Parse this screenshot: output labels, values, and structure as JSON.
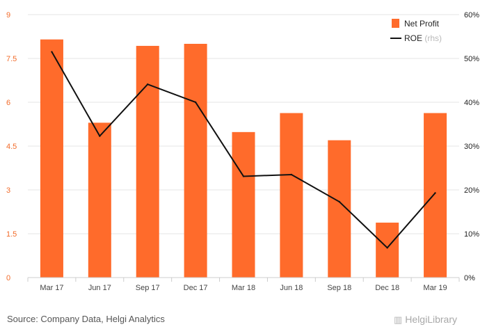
{
  "chart_data": {
    "type": "bar",
    "categories": [
      "Mar 17",
      "Jun 17",
      "Sep 17",
      "Dec 17",
      "Mar 18",
      "Jun 18",
      "Sep 18",
      "Dec 18",
      "Mar 19"
    ],
    "series": [
      {
        "name": "Net Profit",
        "type": "bar",
        "axis": "left",
        "color": "#ff6b2b",
        "values": [
          8.15,
          5.3,
          7.93,
          8.0,
          4.98,
          5.63,
          4.7,
          1.88,
          5.63
        ]
      },
      {
        "name": "ROE",
        "type": "line",
        "axis": "right",
        "color": "#111111",
        "values": [
          51.5,
          32.3,
          44.1,
          40.0,
          23.1,
          23.5,
          17.3,
          6.8,
          19.3
        ]
      }
    ],
    "legend_sub": "(rhs)",
    "y_left": {
      "ticks": [
        "0",
        "1.5",
        "3",
        "4.5",
        "6",
        "7.5",
        "9"
      ],
      "tick_values": [
        0,
        1.5,
        3,
        4.5,
        6,
        7.5,
        9
      ],
      "range": [
        0,
        9
      ]
    },
    "y_right": {
      "ticks": [
        "0%",
        "10%",
        "20%",
        "30%",
        "40%",
        "50%",
        "60%"
      ],
      "tick_values": [
        0,
        10,
        20,
        30,
        40,
        50,
        60
      ],
      "range": [
        0,
        60
      ]
    },
    "grid": true,
    "legend_position": "top-right"
  },
  "footer": {
    "source": "Source: Company Data, Helgi Analytics",
    "brand": "HelgiLibrary"
  }
}
